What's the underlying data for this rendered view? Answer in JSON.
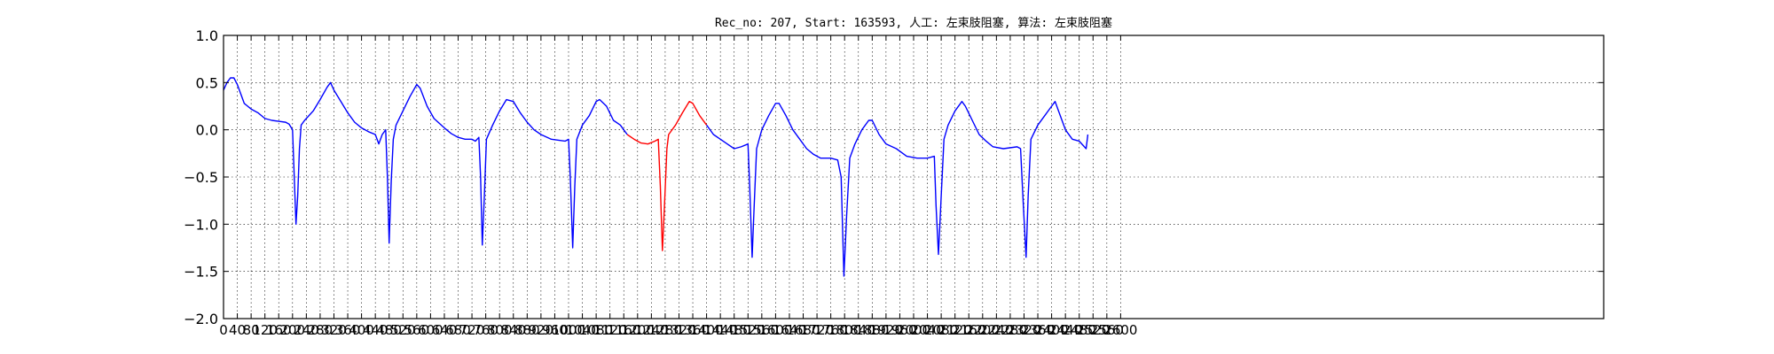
{
  "chart_data": {
    "type": "line",
    "title": "Rec_no: 207, Start: 163593, 人工: 左束肢阻塞, 算法: 左束肢阻塞",
    "xlabel": "",
    "ylabel": "",
    "xlim": [
      0,
      4000
    ],
    "ylim": [
      -2.0,
      1.0
    ],
    "grid": true,
    "y_ticks": [
      1.0,
      0.5,
      0.0,
      -0.5,
      -1.0,
      -1.5,
      -2.0
    ],
    "y_tick_labels": [
      "1.0",
      "0.5",
      "0.0",
      "−0.5",
      "−1.0",
      "−1.5",
      "−2.0"
    ],
    "x_tick_labels": [
      "0",
      "40",
      "80",
      "120",
      "160",
      "200",
      "240",
      "280",
      "320",
      "360",
      "400",
      "440",
      "480",
      "520",
      "560",
      "600",
      "640",
      "680",
      "720",
      "760",
      "800",
      "840",
      "880",
      "920",
      "960",
      "1000",
      "1040",
      "1080",
      "1120",
      "1160",
      "1200",
      "1240",
      "1280",
      "1320",
      "1360",
      "1400",
      "1440",
      "1480",
      "1520",
      "1560",
      "1600",
      "1640",
      "1680",
      "1720",
      "1760",
      "1800",
      "1840",
      "1880",
      "1920",
      "1960",
      "2000",
      "2040",
      "2080",
      "2120",
      "2160",
      "2200",
      "2240",
      "2280",
      "2320",
      "2360",
      "2400",
      "2440",
      "2480",
      "2520",
      "2560",
      "2600"
    ],
    "series": [
      {
        "color": "#0000ff",
        "points": [
          [
            0,
            0.42
          ],
          [
            10,
            0.5
          ],
          [
            20,
            0.55
          ],
          [
            30,
            0.55
          ],
          [
            40,
            0.48
          ],
          [
            50,
            0.38
          ],
          [
            60,
            0.28
          ],
          [
            70,
            0.25
          ],
          [
            80,
            0.22
          ],
          [
            100,
            0.18
          ],
          [
            120,
            0.12
          ],
          [
            140,
            0.1
          ],
          [
            160,
            0.09
          ],
          [
            180,
            0.08
          ],
          [
            190,
            0.06
          ],
          [
            200,
            0.0
          ],
          [
            205,
            -0.5
          ],
          [
            210,
            -1.0
          ],
          [
            215,
            -0.7
          ],
          [
            220,
            -0.2
          ],
          [
            225,
            0.05
          ],
          [
            235,
            0.1
          ],
          [
            260,
            0.2
          ],
          [
            280,
            0.32
          ],
          [
            300,
            0.45
          ],
          [
            310,
            0.5
          ],
          [
            320,
            0.42
          ],
          [
            340,
            0.3
          ],
          [
            360,
            0.18
          ],
          [
            380,
            0.08
          ],
          [
            400,
            0.02
          ],
          [
            420,
            -0.02
          ],
          [
            440,
            -0.05
          ],
          [
            450,
            -0.15
          ],
          [
            460,
            -0.05
          ],
          [
            470,
            0.0
          ],
          [
            475,
            -0.5
          ],
          [
            480,
            -1.2
          ],
          [
            486,
            -0.55
          ],
          [
            492,
            -0.1
          ],
          [
            500,
            0.05
          ],
          [
            520,
            0.2
          ],
          [
            540,
            0.35
          ],
          [
            560,
            0.48
          ],
          [
            570,
            0.44
          ],
          [
            590,
            0.25
          ],
          [
            610,
            0.12
          ],
          [
            640,
            0.02
          ],
          [
            660,
            -0.04
          ],
          [
            680,
            -0.08
          ],
          [
            700,
            -0.1
          ],
          [
            720,
            -0.1
          ],
          [
            730,
            -0.12
          ],
          [
            740,
            -0.08
          ],
          [
            745,
            -0.5
          ],
          [
            750,
            -1.22
          ],
          [
            756,
            -0.7
          ],
          [
            762,
            -0.1
          ],
          [
            780,
            0.05
          ],
          [
            800,
            0.2
          ],
          [
            820,
            0.32
          ],
          [
            840,
            0.3
          ],
          [
            860,
            0.18
          ],
          [
            880,
            0.08
          ],
          [
            900,
            0.0
          ],
          [
            920,
            -0.05
          ],
          [
            950,
            -0.1
          ],
          [
            990,
            -0.12
          ],
          [
            1000,
            -0.1
          ],
          [
            1005,
            -0.5
          ],
          [
            1012,
            -1.25
          ],
          [
            1018,
            -0.6
          ],
          [
            1024,
            -0.1
          ],
          [
            1040,
            0.05
          ],
          [
            1060,
            0.15
          ],
          [
            1080,
            0.3
          ],
          [
            1090,
            0.32
          ],
          [
            1110,
            0.25
          ],
          [
            1130,
            0.1
          ],
          [
            1150,
            0.05
          ],
          [
            1160,
            0.0
          ],
          [
            1170,
            -0.05
          ]
        ]
      },
      {
        "color": "#ff0000",
        "points": [
          [
            1170,
            -0.05
          ],
          [
            1190,
            -0.1
          ],
          [
            1210,
            -0.14
          ],
          [
            1230,
            -0.15
          ],
          [
            1250,
            -0.12
          ],
          [
            1260,
            -0.1
          ],
          [
            1266,
            -0.6
          ],
          [
            1272,
            -1.28
          ],
          [
            1278,
            -0.8
          ],
          [
            1285,
            -0.2
          ],
          [
            1290,
            -0.05
          ],
          [
            1310,
            0.05
          ],
          [
            1330,
            0.18
          ],
          [
            1350,
            0.3
          ],
          [
            1360,
            0.28
          ],
          [
            1380,
            0.15
          ],
          [
            1400,
            0.05
          ]
        ]
      },
      {
        "color": "#0000ff",
        "points": [
          [
            1400,
            0.05
          ],
          [
            1420,
            -0.05
          ],
          [
            1440,
            -0.1
          ],
          [
            1460,
            -0.15
          ],
          [
            1480,
            -0.2
          ],
          [
            1500,
            -0.18
          ],
          [
            1520,
            -0.15
          ],
          [
            1525,
            -0.6
          ],
          [
            1532,
            -1.35
          ],
          [
            1538,
            -0.8
          ],
          [
            1545,
            -0.2
          ],
          [
            1560,
            0.0
          ],
          [
            1580,
            0.15
          ],
          [
            1600,
            0.28
          ],
          [
            1610,
            0.28
          ],
          [
            1630,
            0.15
          ],
          [
            1650,
            0.0
          ],
          [
            1670,
            -0.1
          ],
          [
            1690,
            -0.2
          ],
          [
            1710,
            -0.26
          ],
          [
            1730,
            -0.3
          ],
          [
            1760,
            -0.3
          ],
          [
            1780,
            -0.32
          ],
          [
            1790,
            -0.5
          ],
          [
            1798,
            -1.55
          ],
          [
            1806,
            -0.9
          ],
          [
            1815,
            -0.3
          ],
          [
            1830,
            -0.15
          ],
          [
            1850,
            0.0
          ],
          [
            1870,
            0.1
          ],
          [
            1880,
            0.1
          ],
          [
            1900,
            -0.05
          ],
          [
            1920,
            -0.15
          ],
          [
            1950,
            -0.2
          ],
          [
            1980,
            -0.28
          ],
          [
            2010,
            -0.3
          ],
          [
            2040,
            -0.3
          ],
          [
            2060,
            -0.28
          ],
          [
            2065,
            -0.8
          ],
          [
            2072,
            -1.32
          ],
          [
            2080,
            -0.7
          ],
          [
            2088,
            -0.1
          ],
          [
            2100,
            0.05
          ],
          [
            2120,
            0.2
          ],
          [
            2140,
            0.3
          ],
          [
            2150,
            0.25
          ],
          [
            2170,
            0.1
          ],
          [
            2190,
            -0.05
          ],
          [
            2210,
            -0.12
          ],
          [
            2230,
            -0.18
          ],
          [
            2260,
            -0.2
          ],
          [
            2300,
            -0.18
          ],
          [
            2310,
            -0.2
          ],
          [
            2318,
            -0.8
          ],
          [
            2326,
            -1.35
          ],
          [
            2332,
            -0.7
          ],
          [
            2340,
            -0.1
          ],
          [
            2360,
            0.05
          ],
          [
            2380,
            0.15
          ],
          [
            2400,
            0.25
          ],
          [
            2410,
            0.3
          ],
          [
            2420,
            0.2
          ],
          [
            2440,
            0.0
          ],
          [
            2460,
            -0.1
          ],
          [
            2480,
            -0.12
          ],
          [
            2500,
            -0.2
          ],
          [
            2505,
            -0.05
          ]
        ]
      }
    ]
  }
}
